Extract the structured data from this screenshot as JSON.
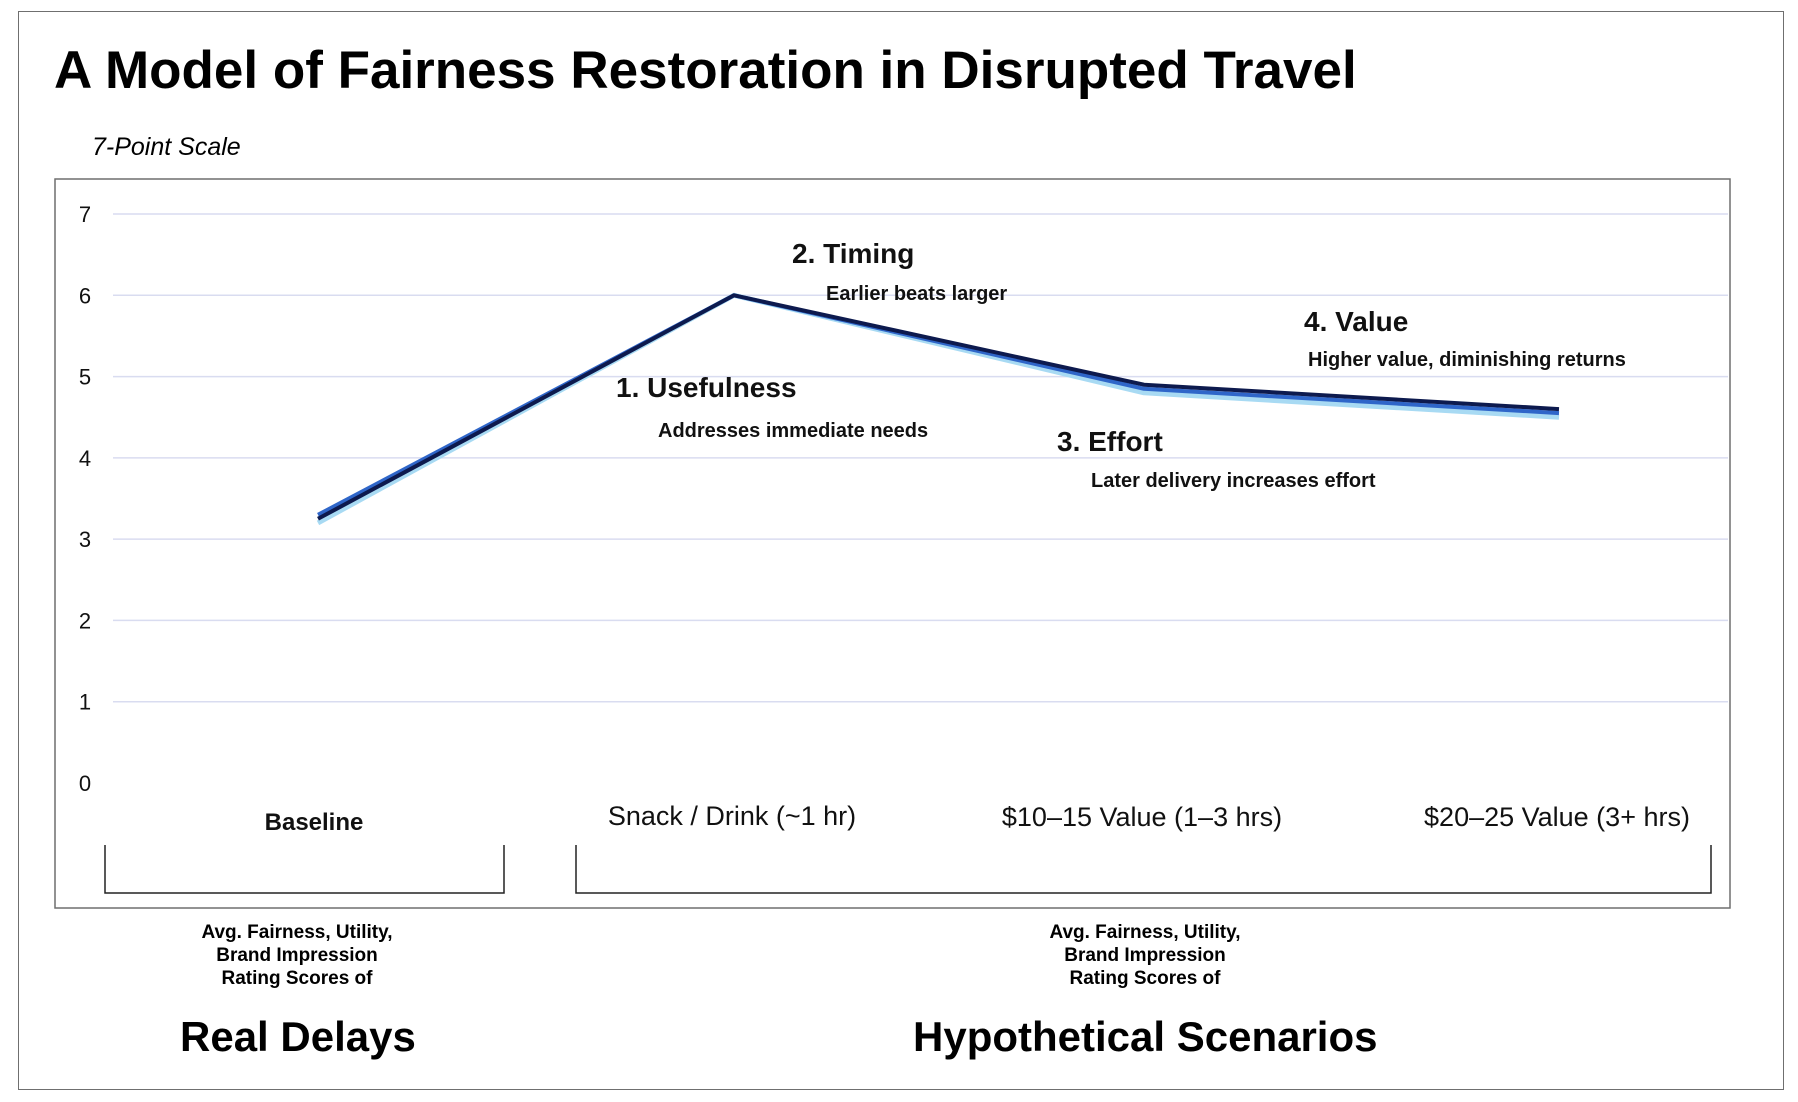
{
  "title": "A Model of Fairness Restoration in Disrupted Travel",
  "scale_label": "7-Point Scale",
  "chart_data": {
    "type": "line",
    "title": "A Model of Fairness Restoration in Disrupted Travel",
    "ylabel": "7-Point Scale",
    "xlabel": "",
    "ylim": [
      0,
      7
    ],
    "yticks": [
      0,
      1,
      2,
      3,
      4,
      5,
      6,
      7
    ],
    "grid": true,
    "categories": [
      "Baseline",
      "Snack / Drink (~1 hr)",
      "$10–15 Value (1–3 hrs)",
      "$20–25 Value (3+ hrs)"
    ],
    "series": [
      {
        "values": [
          3.25,
          6.0,
          4.9,
          4.6
        ],
        "color": "#0d1a4e"
      },
      {
        "values": [
          3.3,
          6.0,
          4.85,
          4.55
        ],
        "color": "#2f66c9"
      },
      {
        "values": [
          3.2,
          6.0,
          4.8,
          4.5
        ],
        "color": "#a8daf3"
      }
    ],
    "annotations": [
      {
        "title": "1.  Usefulness",
        "text": "Addresses immediate needs"
      },
      {
        "title": "2. Timing",
        "text": "Earlier beats larger"
      },
      {
        "title": "3. Effort",
        "text": "Later delivery increases effort"
      },
      {
        "title": "4. Value",
        "text": "Higher value, diminishing returns"
      }
    ]
  },
  "groups": [
    {
      "note": [
        "Avg. Fairness, Utility,",
        "Brand Impression",
        "Rating Scores of"
      ],
      "title": "Real Delays"
    },
    {
      "note": [
        "Avg. Fairness, Utility,",
        "Brand Impression",
        "Rating Scores of"
      ],
      "title": "Hypothetical Scenarios"
    }
  ]
}
